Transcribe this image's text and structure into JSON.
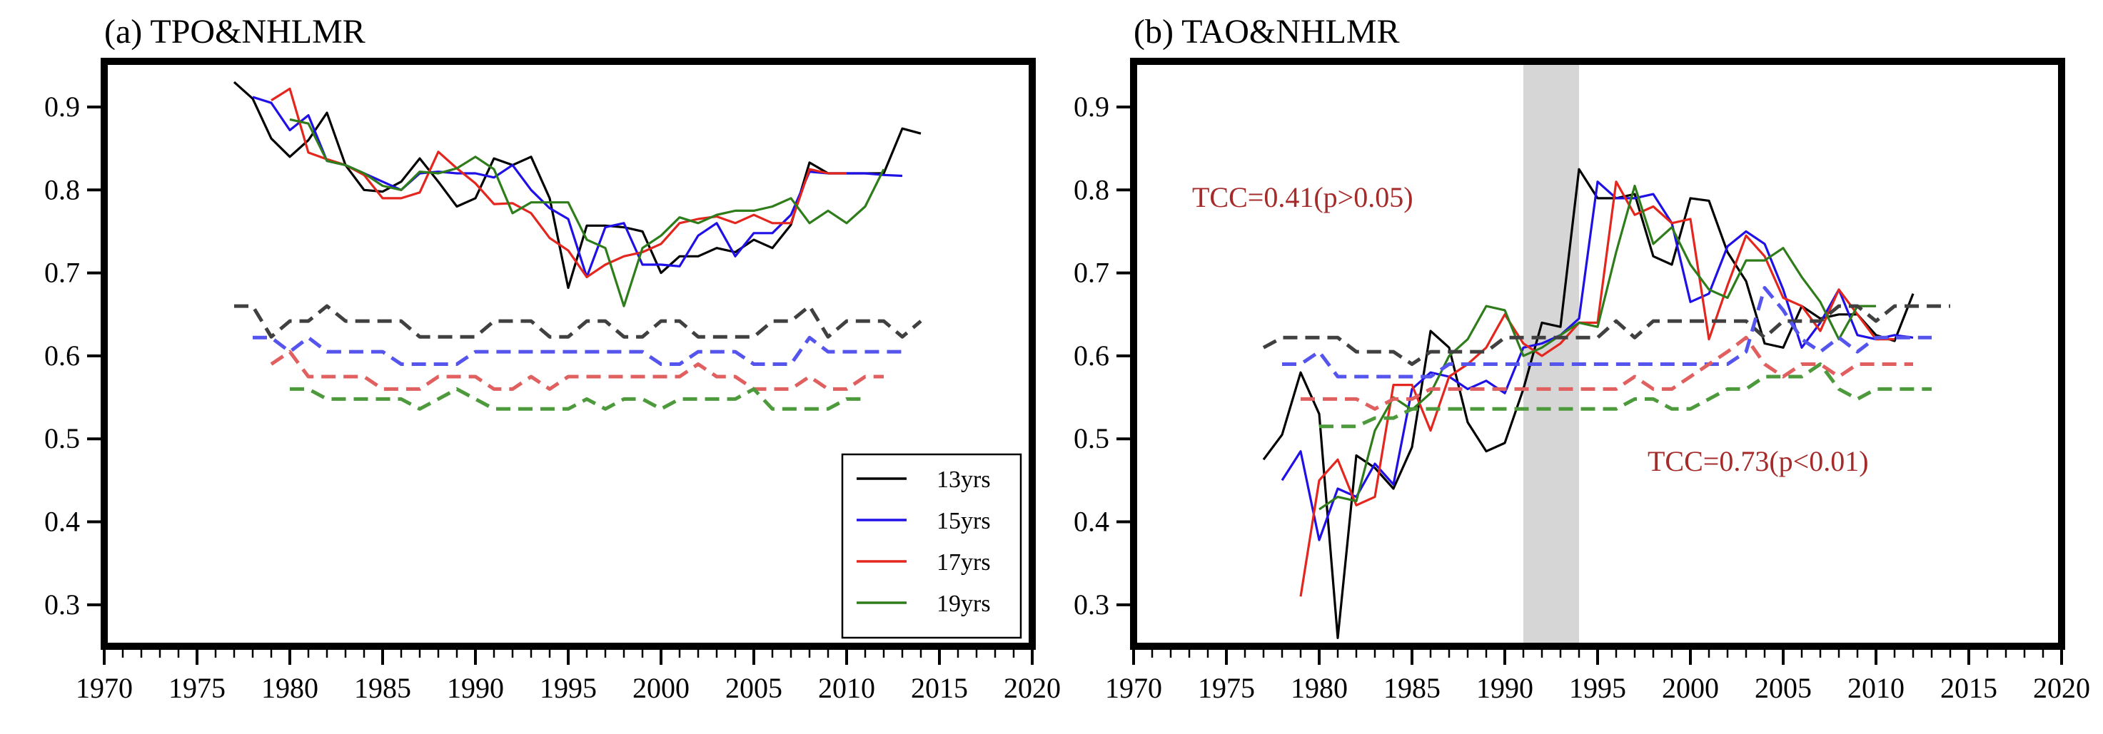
{
  "figure": {
    "x_ticks": [
      1970,
      1975,
      1980,
      1985,
      1990,
      1995,
      2000,
      2005,
      2010,
      2015,
      2020
    ],
    "y_ticks": [
      0.3,
      0.4,
      0.5,
      0.6,
      0.7,
      0.8,
      0.9
    ],
    "xlim": [
      1970,
      2020
    ],
    "ylim": [
      0.25,
      0.955
    ],
    "legend": {
      "placement": "lower-right of panel (a)",
      "entries": [
        "13yrs",
        "15yrs",
        "17yrs",
        "19yrs"
      ]
    },
    "colors": {
      "13yrs": "#000000",
      "15yrs": "#1f10e6",
      "17yrs": "#e3261e",
      "19yrs": "#2e7d1a"
    },
    "threshold_colors": {
      "13yrs": "#404040",
      "15yrs": "#5555ee",
      "17yrs": "#e06060",
      "19yrs": "#4d9a3c"
    }
  },
  "chart_data": [
    {
      "type": "line",
      "title": "(a) TPO&NHLMR",
      "xlabel": "",
      "ylabel": "",
      "xlim": [
        1970,
        2020
      ],
      "ylim": [
        0.25,
        0.955
      ],
      "grid": false,
      "series": [
        {
          "name": "13yrs",
          "style": "solid",
          "x0": 1977,
          "values": [
            0.93,
            0.91,
            0.862,
            0.84,
            0.86,
            0.893,
            0.83,
            0.8,
            0.798,
            0.81,
            0.838,
            0.81,
            0.78,
            0.79,
            0.838,
            0.83,
            0.84,
            0.79,
            0.682,
            0.757,
            0.757,
            0.755,
            0.75,
            0.7,
            0.72,
            0.72,
            0.73,
            0.725,
            0.74,
            0.73,
            0.758,
            0.833,
            0.82,
            0.82,
            0.82,
            0.82,
            0.874,
            0.868
          ]
        },
        {
          "name": "15yrs",
          "style": "solid",
          "x0": 1978,
          "values": [
            0.912,
            0.905,
            0.872,
            0.89,
            0.835,
            0.83,
            0.82,
            0.81,
            0.8,
            0.82,
            0.822,
            0.82,
            0.82,
            0.815,
            0.83,
            0.8,
            0.778,
            0.765,
            0.695,
            0.755,
            0.76,
            0.71,
            0.71,
            0.708,
            0.745,
            0.76,
            0.72,
            0.748,
            0.748,
            0.77,
            0.822,
            0.82,
            0.82,
            0.82,
            0.818,
            0.817
          ]
        },
        {
          "name": "17yrs",
          "style": "solid",
          "x0": 1979,
          "values": [
            0.908,
            0.922,
            0.845,
            0.837,
            0.83,
            0.818,
            0.79,
            0.79,
            0.797,
            0.846,
            0.826,
            0.808,
            0.783,
            0.784,
            0.772,
            0.742,
            0.727,
            0.695,
            0.71,
            0.72,
            0.725,
            0.735,
            0.76,
            0.765,
            0.768,
            0.76,
            0.77,
            0.76,
            0.76,
            0.825,
            0.82,
            0.82
          ]
        },
        {
          "name": "19yrs",
          "style": "solid",
          "x0": 1980,
          "values": [
            0.885,
            0.88,
            0.835,
            0.83,
            0.82,
            0.805,
            0.8,
            0.822,
            0.82,
            0.826,
            0.84,
            0.825,
            0.772,
            0.785,
            0.785,
            0.785,
            0.74,
            0.73,
            0.66,
            0.73,
            0.745,
            0.767,
            0.76,
            0.77,
            0.775,
            0.775,
            0.78,
            0.79,
            0.76,
            0.775,
            0.76,
            0.78,
            0.825
          ]
        },
        {
          "name": "13yrs threshold",
          "style": "dashed",
          "x0": 1977,
          "values": [
            0.66,
            0.66,
            0.623,
            0.642,
            0.642,
            0.66,
            0.642,
            0.642,
            0.642,
            0.642,
            0.623,
            0.623,
            0.623,
            0.623,
            0.642,
            0.642,
            0.642,
            0.623,
            0.623,
            0.642,
            0.642,
            0.623,
            0.623,
            0.642,
            0.642,
            0.623,
            0.623,
            0.623,
            0.623,
            0.642,
            0.642,
            0.66,
            0.623,
            0.642,
            0.642,
            0.642,
            0.623,
            0.642
          ]
        },
        {
          "name": "15yrs threshold",
          "style": "dashed",
          "x0": 1978,
          "values": [
            0.622,
            0.622,
            0.605,
            0.622,
            0.605,
            0.605,
            0.605,
            0.605,
            0.59,
            0.59,
            0.59,
            0.59,
            0.605,
            0.605,
            0.605,
            0.605,
            0.605,
            0.605,
            0.605,
            0.605,
            0.605,
            0.605,
            0.59,
            0.59,
            0.605,
            0.605,
            0.605,
            0.59,
            0.59,
            0.59,
            0.622,
            0.605,
            0.605,
            0.605,
            0.605,
            0.605
          ]
        },
        {
          "name": "17yrs threshold",
          "style": "dashed",
          "x0": 1979,
          "values": [
            0.59,
            0.605,
            0.575,
            0.575,
            0.575,
            0.575,
            0.56,
            0.56,
            0.56,
            0.575,
            0.575,
            0.575,
            0.56,
            0.56,
            0.575,
            0.56,
            0.575,
            0.575,
            0.575,
            0.575,
            0.575,
            0.575,
            0.575,
            0.59,
            0.575,
            0.575,
            0.56,
            0.56,
            0.56,
            0.575,
            0.56,
            0.56,
            0.575,
            0.575
          ]
        },
        {
          "name": "19yrs threshold",
          "style": "dashed",
          "x0": 1980,
          "values": [
            0.56,
            0.56,
            0.548,
            0.548,
            0.548,
            0.548,
            0.548,
            0.536,
            0.548,
            0.56,
            0.548,
            0.536,
            0.536,
            0.536,
            0.536,
            0.536,
            0.548,
            0.536,
            0.548,
            0.548,
            0.536,
            0.548,
            0.548,
            0.548,
            0.548,
            0.56,
            0.536,
            0.536,
            0.536,
            0.536,
            0.548,
            0.548
          ]
        }
      ]
    },
    {
      "type": "line",
      "title": "(b) TAO&NHLMR",
      "xlabel": "",
      "ylabel": "",
      "xlim": [
        1970,
        2020
      ],
      "ylim": [
        0.25,
        0.955
      ],
      "grid": false,
      "shaded_span": {
        "x_start": 1991,
        "x_end": 1994,
        "color": "#d6d6d6"
      },
      "annotations": [
        {
          "text": "TCC=0.41(p>0.05)",
          "color": "#a52a2a"
        },
        {
          "text": "TCC=0.73(p<0.01)",
          "color": "#a52a2a"
        }
      ],
      "series": [
        {
          "name": "13yrs",
          "style": "solid",
          "x0": 1977,
          "values": [
            0.475,
            0.505,
            0.58,
            0.53,
            0.26,
            0.48,
            0.465,
            0.44,
            0.49,
            0.63,
            0.61,
            0.52,
            0.485,
            0.495,
            0.56,
            0.64,
            0.635,
            0.825,
            0.79,
            0.79,
            0.795,
            0.72,
            0.71,
            0.79,
            0.787,
            0.725,
            0.69,
            0.615,
            0.61,
            0.66,
            0.645,
            0.65,
            0.65,
            0.625,
            0.618,
            0.675
          ]
        },
        {
          "name": "15yrs",
          "style": "solid",
          "x0": 1978,
          "values": [
            0.45,
            0.485,
            0.378,
            0.44,
            0.43,
            0.47,
            0.445,
            0.56,
            0.58,
            0.575,
            0.56,
            0.57,
            0.555,
            0.61,
            0.615,
            0.625,
            0.645,
            0.81,
            0.79,
            0.79,
            0.795,
            0.76,
            0.665,
            0.675,
            0.732,
            0.75,
            0.735,
            0.68,
            0.61,
            0.64,
            0.68,
            0.625,
            0.62,
            0.625,
            0.622
          ]
        },
        {
          "name": "17yrs",
          "style": "solid",
          "x0": 1979,
          "values": [
            0.31,
            0.45,
            0.475,
            0.42,
            0.43,
            0.565,
            0.565,
            0.51,
            0.575,
            0.59,
            0.61,
            0.65,
            0.615,
            0.6,
            0.615,
            0.64,
            0.64,
            0.81,
            0.77,
            0.78,
            0.76,
            0.765,
            0.62,
            0.685,
            0.745,
            0.72,
            0.67,
            0.66,
            0.63,
            0.68,
            0.65,
            0.62,
            0.62
          ]
        },
        {
          "name": "19yrs",
          "style": "solid",
          "x0": 1980,
          "values": [
            0.415,
            0.43,
            0.425,
            0.51,
            0.55,
            0.535,
            0.555,
            0.6,
            0.62,
            0.66,
            0.655,
            0.6,
            0.61,
            0.625,
            0.64,
            0.635,
            0.725,
            0.805,
            0.735,
            0.755,
            0.71,
            0.68,
            0.67,
            0.715,
            0.715,
            0.73,
            0.695,
            0.665,
            0.62,
            0.66,
            0.66
          ]
        },
        {
          "name": "13yrs threshold",
          "style": "dashed",
          "x0": 1977,
          "values": [
            0.61,
            0.622,
            0.622,
            0.622,
            0.622,
            0.605,
            0.605,
            0.605,
            0.59,
            0.605,
            0.605,
            0.605,
            0.605,
            0.622,
            0.622,
            0.622,
            0.622,
            0.622,
            0.622,
            0.642,
            0.622,
            0.642,
            0.642,
            0.642,
            0.642,
            0.642,
            0.642,
            0.622,
            0.642,
            0.642,
            0.642,
            0.66,
            0.66,
            0.642,
            0.66,
            0.66,
            0.66,
            0.66
          ]
        },
        {
          "name": "15yrs threshold",
          "style": "dashed",
          "x0": 1978,
          "values": [
            0.59,
            0.59,
            0.605,
            0.575,
            0.575,
            0.575,
            0.575,
            0.575,
            0.575,
            0.59,
            0.59,
            0.59,
            0.59,
            0.59,
            0.59,
            0.59,
            0.59,
            0.59,
            0.59,
            0.59,
            0.59,
            0.59,
            0.59,
            0.59,
            0.59,
            0.605,
            0.682,
            0.655,
            0.62,
            0.605,
            0.622,
            0.605,
            0.622,
            0.622,
            0.622,
            0.622
          ]
        },
        {
          "name": "17yrs threshold",
          "style": "dashed",
          "x0": 1979,
          "values": [
            0.548,
            0.548,
            0.548,
            0.548,
            0.536,
            0.548,
            0.548,
            0.56,
            0.56,
            0.56,
            0.56,
            0.56,
            0.56,
            0.56,
            0.56,
            0.56,
            0.56,
            0.56,
            0.575,
            0.56,
            0.56,
            0.575,
            0.59,
            0.605,
            0.622,
            0.59,
            0.575,
            0.59,
            0.59,
            0.575,
            0.59,
            0.59,
            0.59,
            0.59
          ]
        },
        {
          "name": "19yrs threshold",
          "style": "dashed",
          "x0": 1980,
          "values": [
            0.515,
            0.515,
            0.515,
            0.525,
            0.525,
            0.536,
            0.536,
            0.536,
            0.536,
            0.536,
            0.536,
            0.536,
            0.536,
            0.536,
            0.536,
            0.536,
            0.536,
            0.548,
            0.548,
            0.536,
            0.536,
            0.548,
            0.56,
            0.56,
            0.575,
            0.575,
            0.575,
            0.59,
            0.56,
            0.548,
            0.56,
            0.56,
            0.56,
            0.56
          ]
        }
      ]
    }
  ]
}
